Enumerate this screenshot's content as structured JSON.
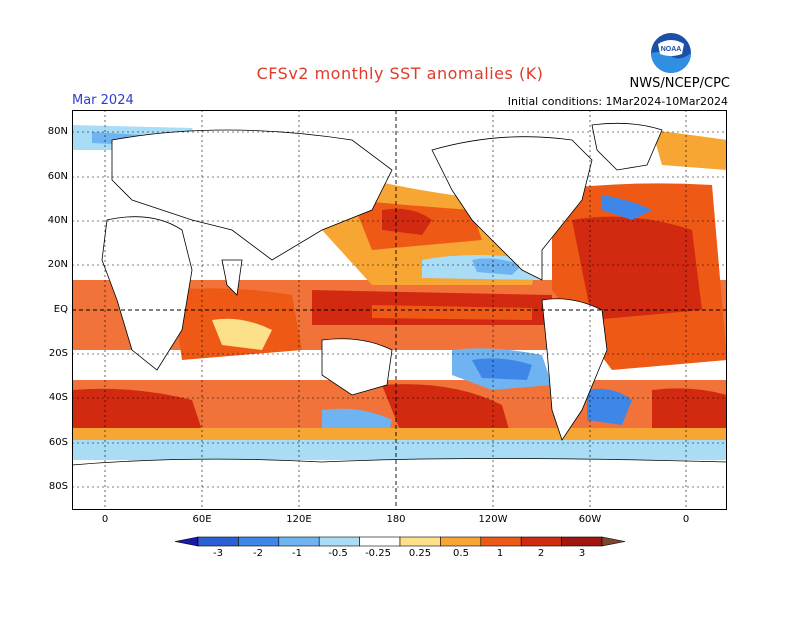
{
  "header": {
    "title": "CFSv2 monthly SST anomalies (K)",
    "month": "Mar 2024",
    "agency": "NWS/NCEP/CPC",
    "initial_conditions": "Initial conditions: 1Mar2024-10Mar2024",
    "logo_text": "NOAA"
  },
  "map": {
    "lat_labels": [
      "80N",
      "60N",
      "40N",
      "20N",
      "EQ",
      "20S",
      "40S",
      "60S",
      "80S"
    ],
    "lon_labels": [
      "0",
      "60E",
      "120E",
      "180",
      "120W",
      "60W",
      "0"
    ]
  },
  "colorbar": {
    "labels": [
      "-3",
      "-2",
      "-1",
      "-0.5",
      "-0.25",
      "0.25",
      "0.5",
      "1",
      "2",
      "3"
    ],
    "colors": [
      "#1a1aa8",
      "#2a5fd6",
      "#3e87e8",
      "#6fb3f0",
      "#a9dcf5",
      "#ffffff",
      "#fde08a",
      "#f7a533",
      "#ee5a16",
      "#d22a10",
      "#a3150f",
      "#7e4530"
    ]
  }
}
